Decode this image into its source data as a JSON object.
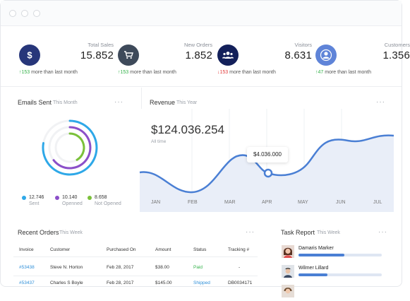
{
  "stats": [
    {
      "label": "Total Sales",
      "value": "15.852",
      "delta_value": "153",
      "delta_text": "more than last month",
      "direction": "up",
      "icon": "dollar-icon",
      "color": "#27367a"
    },
    {
      "label": "New Orders",
      "value": "1.852",
      "delta_value": "153",
      "delta_text": "more than last month",
      "direction": "up",
      "icon": "shopping-cart-icon",
      "color": "#3e4a5a"
    },
    {
      "label": "Visitors",
      "value": "8.631",
      "delta_value": "153",
      "delta_text": "more than last month",
      "direction": "down",
      "icon": "users-icon",
      "color": "#13205a"
    },
    {
      "label": "Customers",
      "value": "1.356",
      "delta_value": "47",
      "delta_text": "more than last month",
      "direction": "up",
      "icon": "user-icon",
      "color": "#5f84d8"
    }
  ],
  "emails": {
    "title": "Emails Sent",
    "period": "This Month",
    "legend": [
      {
        "value": "12.746",
        "name": "Sent",
        "color": "#2ea8e8"
      },
      {
        "value": "10.140",
        "name": "Openned",
        "color": "#8b4fc9"
      },
      {
        "value": "8.658",
        "name": "Not Opened",
        "color": "#7bc13a"
      }
    ]
  },
  "revenue": {
    "title": "Revenue",
    "period": "This Year",
    "amount": "$124.036.254",
    "subtitle": "All time",
    "tooltip": "$4.036.000"
  },
  "chart_data": {
    "type": "area",
    "categories": [
      "JAN",
      "FEB",
      "MAR",
      "APR",
      "MAY",
      "JUN",
      "JUL"
    ],
    "highlight": {
      "category": "APR",
      "label": "$4.036.000"
    },
    "grid": true,
    "legend": "none"
  },
  "orders": {
    "title": "Recent Orders",
    "period": "This Week",
    "columns": [
      "Invoice",
      "Customer",
      "Purchased On",
      "Amount",
      "Status",
      "Tracking #"
    ],
    "rows": [
      {
        "invoice": "#53438",
        "customer": "Steve N. Horton",
        "date": "Feb 28, 2017",
        "amount": "$38.00",
        "status": "Paid",
        "tracking": "-"
      },
      {
        "invoice": "#53437",
        "customer": "Charles S Boyle",
        "date": "Feb 28, 2017",
        "amount": "$145.00",
        "status": "Shipped",
        "tracking": "DB0034171"
      }
    ]
  },
  "tasks": {
    "title": "Task Report",
    "period": "This Week",
    "items": [
      {
        "name": "Damaris Marker",
        "progress": 0.55
      },
      {
        "name": "Wilmer Lillard",
        "progress": 0.35
      }
    ]
  },
  "colors": {
    "accent": "#4a7fd4",
    "area_fill": "#e9eef8",
    "up": "#34b24a",
    "down": "#e23a3a"
  }
}
